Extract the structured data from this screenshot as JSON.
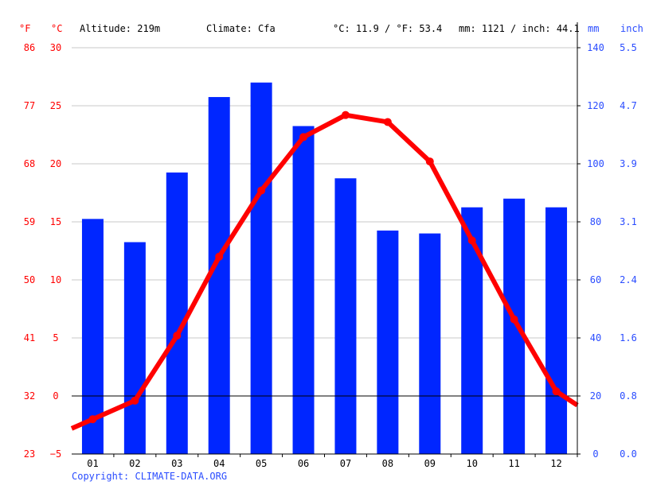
{
  "header": {
    "f_unit": "°F",
    "c_unit": "°C",
    "altitude": "Altitude: 219m",
    "climate": "Climate: Cfa",
    "avg_temp": "°C: 11.9 / °F: 53.4",
    "precip_total": "mm: 1121 / inch: 44.1",
    "mm_unit": "mm",
    "inch_unit": "inch"
  },
  "copyright": "Copyright: CLIMATE-DATA.ORG",
  "colors": {
    "precip": "#0026ff",
    "temp": "#ff0000",
    "grid": "#c8c8c8",
    "precip_text": "#2a4cff"
  },
  "chart_data": {
    "type": "bar+line",
    "categories": [
      "01",
      "02",
      "03",
      "04",
      "05",
      "06",
      "07",
      "08",
      "09",
      "10",
      "11",
      "12"
    ],
    "series": [
      {
        "name": "Precipitation (mm)",
        "type": "bar",
        "axis": "right",
        "values": [
          81,
          73,
          97,
          123,
          128,
          113,
          95,
          77,
          76,
          85,
          88,
          85
        ]
      },
      {
        "name": "Temperature (°C)",
        "type": "line",
        "axis": "left",
        "values": [
          -2.0,
          -0.4,
          5.2,
          12.0,
          17.7,
          22.3,
          24.2,
          23.6,
          20.2,
          13.4,
          6.6,
          0.4
        ]
      }
    ],
    "c_ticks": [
      "30",
      "25",
      "20",
      "15",
      "10",
      "5",
      "0",
      "−5"
    ],
    "f_ticks": [
      "86",
      "77",
      "68",
      "59",
      "50",
      "41",
      "32",
      "23"
    ],
    "mm_ticks": [
      "140",
      "120",
      "100",
      "80",
      "60",
      "40",
      "20",
      "0"
    ],
    "inch_ticks": [
      "5.5",
      "4.7",
      "3.9",
      "3.1",
      "2.4",
      "1.6",
      "0.8",
      "0.0"
    ],
    "c_range": [
      -5,
      30
    ],
    "mm_range": [
      0,
      140
    ],
    "grid": true
  }
}
